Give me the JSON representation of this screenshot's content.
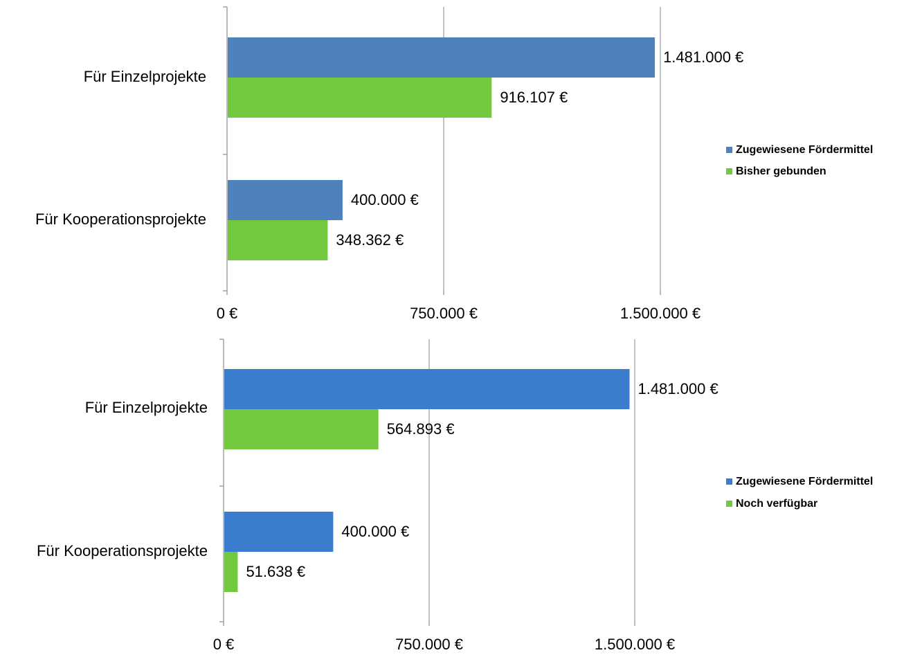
{
  "chart_data": [
    {
      "type": "bar",
      "orientation": "horizontal",
      "title": "",
      "xlabel": "",
      "ylabel": "",
      "categories": [
        "Für Einzelprojekte",
        "Für Kooperationsprojekte"
      ],
      "series": [
        {
          "name": "Zugewiesene Fördermittel",
          "values": [
            1481000,
            400000
          ],
          "labels": [
            "1.481.000 €",
            "400.000 €"
          ],
          "color": "#4f81bd"
        },
        {
          "name": "Bisher gebunden",
          "values": [
            916107,
            348362
          ],
          "labels": [
            "916.107 €",
            "348.362 €"
          ],
          "color": "#73c93e"
        }
      ],
      "xlim": [
        0,
        1500000
      ],
      "ticks": [
        0,
        750000,
        1500000
      ],
      "tick_labels": [
        "0 €",
        "750.000 €",
        "1.500.000 €"
      ],
      "grid": true,
      "legend_position": "right"
    },
    {
      "type": "bar",
      "orientation": "horizontal",
      "title": "",
      "xlabel": "",
      "ylabel": "",
      "categories": [
        "Für Einzelprojekte",
        "Für Kooperationsprojekte"
      ],
      "series": [
        {
          "name": "Zugewiesene Fördermittel",
          "values": [
            1481000,
            400000
          ],
          "labels": [
            "1.481.000 €",
            "400.000 €"
          ],
          "color": "#3a7dcf"
        },
        {
          "name": "Noch verfügbar",
          "values": [
            564893,
            51638
          ],
          "labels": [
            "564.893 €",
            "51.638 €"
          ],
          "color": "#73c93e"
        }
      ],
      "xlim": [
        0,
        1500000
      ],
      "ticks": [
        0,
        750000,
        1500000
      ],
      "tick_labels": [
        "0 €",
        "750.000 €",
        "1.500.000 €"
      ],
      "grid": true,
      "legend_position": "right"
    }
  ]
}
